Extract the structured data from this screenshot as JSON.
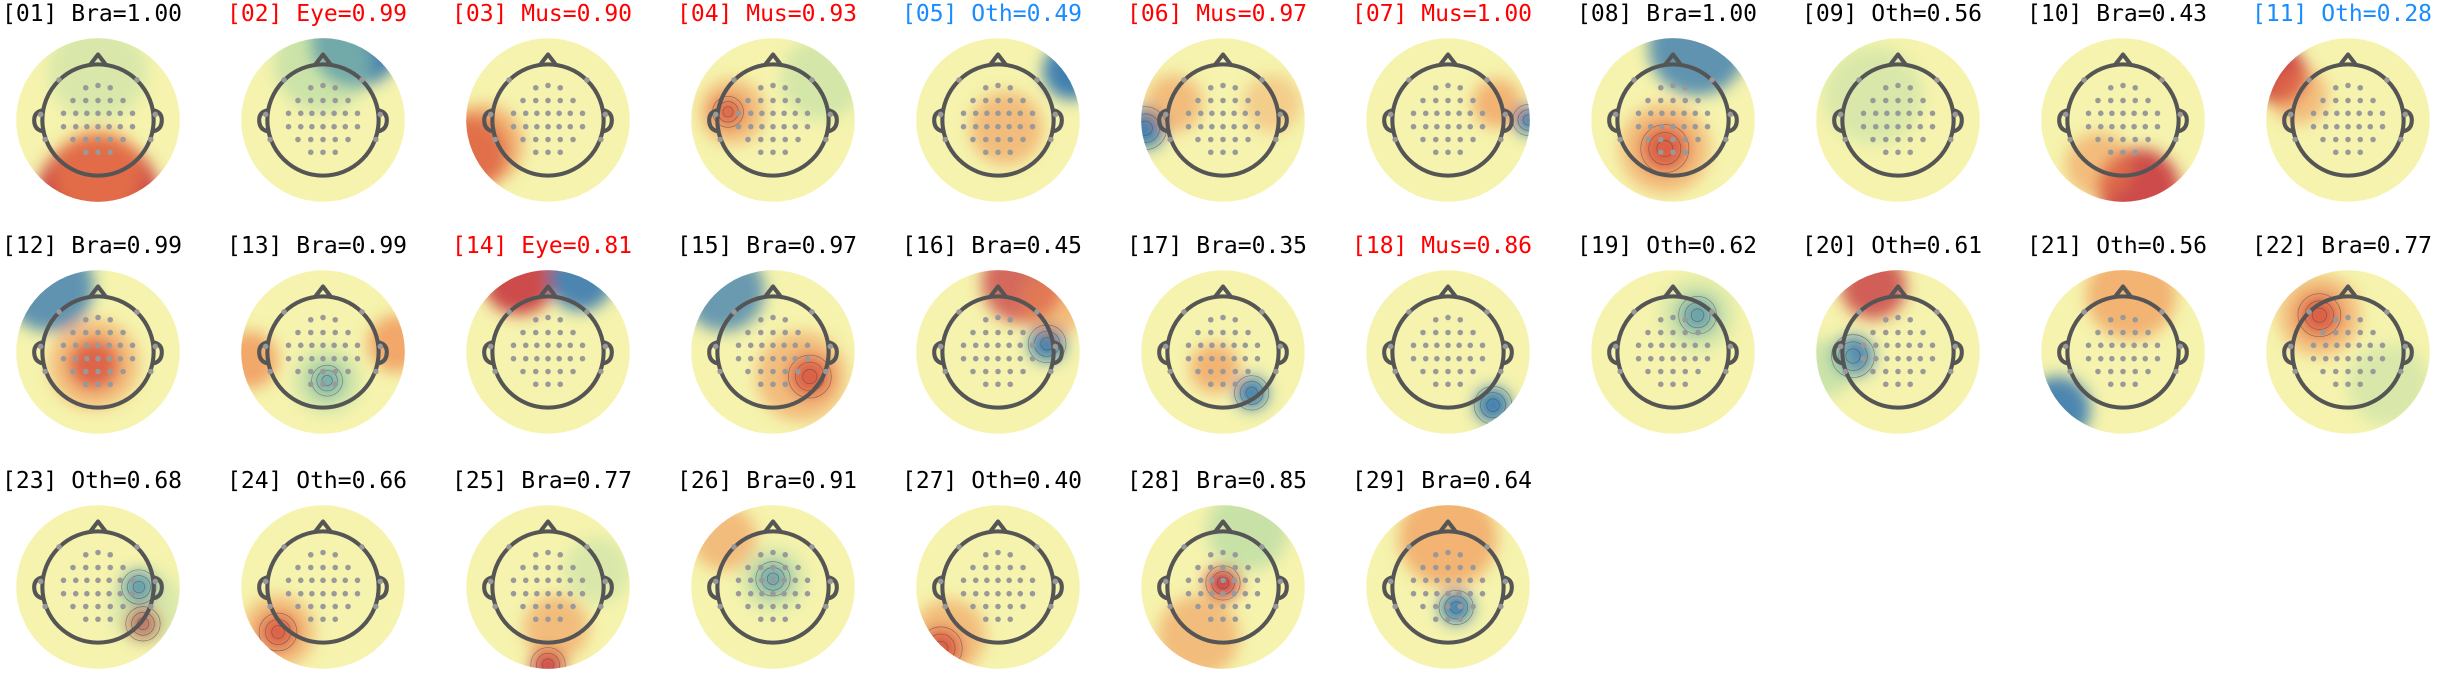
{
  "figure": {
    "components": [
      {
        "label": "[01] Bra=1.00",
        "cls": "Bra",
        "color": "#000000",
        "theme": "bottom-red"
      },
      {
        "label": "[02] Eye=0.99",
        "cls": "Eye",
        "color": "#ff0000",
        "theme": "top-blue"
      },
      {
        "label": "[03] Mus=0.90",
        "cls": "Mus",
        "color": "#ff0000",
        "theme": "left-red"
      },
      {
        "label": "[04] Mus=0.93",
        "cls": "Mus",
        "color": "#ff0000",
        "theme": "spot-red-left"
      },
      {
        "label": "[05] Oth=0.49",
        "cls": "Oth",
        "color": "#1a8cff",
        "theme": "right-blue"
      },
      {
        "label": "[06] Mus=0.97",
        "cls": "Mus",
        "color": "#ff0000",
        "theme": "left-blue-edge"
      },
      {
        "label": "[07] Mus=1.00",
        "cls": "Mus",
        "color": "#ff0000",
        "theme": "right-blue-edge"
      },
      {
        "label": "[08] Bra=1.00",
        "cls": "Bra",
        "color": "#000000",
        "theme": "spot-red-center-top-blue"
      },
      {
        "label": "[09] Oth=0.56",
        "cls": "Oth",
        "color": "#000000",
        "theme": "flat"
      },
      {
        "label": "[10] Bra=0.43",
        "cls": "Bra",
        "color": "#000000",
        "theme": "bottom-red-diag"
      },
      {
        "label": "[11] Oth=0.28",
        "cls": "Oth",
        "color": "#1a8cff",
        "theme": "left-red-top"
      },
      {
        "label": "[12] Bra=0.99",
        "cls": "Bra",
        "color": "#000000",
        "theme": "spot-red-center-blue-tl"
      },
      {
        "label": "[13] Bra=0.99",
        "cls": "Bra",
        "color": "#000000",
        "theme": "spot-blue-center-red-edges"
      },
      {
        "label": "[14] Eye=0.81",
        "cls": "Eye",
        "color": "#ff0000",
        "theme": "top-red-blue"
      },
      {
        "label": "[15] Bra=0.97",
        "cls": "Bra",
        "color": "#000000",
        "theme": "spot-red-right-blue-tl"
      },
      {
        "label": "[16] Bra=0.45",
        "cls": "Bra",
        "color": "#000000",
        "theme": "spot-blue-right-red-top"
      },
      {
        "label": "[17] Bra=0.35",
        "cls": "Bra",
        "color": "#000000",
        "theme": "spot-blue-lower"
      },
      {
        "label": "[18] Mus=0.86",
        "cls": "Mus",
        "color": "#ff0000",
        "theme": "spot-blue-lower-right"
      },
      {
        "label": "[19] Oth=0.62",
        "cls": "Oth",
        "color": "#000000",
        "theme": "spot-blue-top-right"
      },
      {
        "label": "[20] Oth=0.61",
        "cls": "Oth",
        "color": "#000000",
        "theme": "spot-blue-left-red-top"
      },
      {
        "label": "[21] Oth=0.56",
        "cls": "Oth",
        "color": "#000000",
        "theme": "blue-bottom-left"
      },
      {
        "label": "[22] Bra=0.77",
        "cls": "Bra",
        "color": "#000000",
        "theme": "spot-red-top-left"
      },
      {
        "label": "[23] Oth=0.68",
        "cls": "Oth",
        "color": "#000000",
        "theme": "spot-blue-red-right"
      },
      {
        "label": "[24] Oth=0.66",
        "cls": "Oth",
        "color": "#000000",
        "theme": "spot-red-bottom-left"
      },
      {
        "label": "[25] Bra=0.77",
        "cls": "Bra",
        "color": "#000000",
        "theme": "spot-red-bottom"
      },
      {
        "label": "[26] Bra=0.91",
        "cls": "Bra",
        "color": "#000000",
        "theme": "spot-blue-center-top"
      },
      {
        "label": "[27] Oth=0.40",
        "cls": "Oth",
        "color": "#000000",
        "theme": "spot-red-bottom-left-edge"
      },
      {
        "label": "[28] Bra=0.85",
        "cls": "Bra",
        "color": "#000000",
        "theme": "spot-red-center-green-top"
      },
      {
        "label": "[29] Bra=0.64",
        "cls": "Bra",
        "color": "#000000",
        "theme": "spot-blue-center-orange-top"
      }
    ],
    "palette": {
      "red": "#c62f3a",
      "orange": "#f0884b",
      "yellow": "#f5f3ad",
      "green": "#a2d4a3",
      "blue": "#2f73b0",
      "head_outline": "#555555",
      "electrode": "#999999",
      "contour": "#444444"
    }
  }
}
